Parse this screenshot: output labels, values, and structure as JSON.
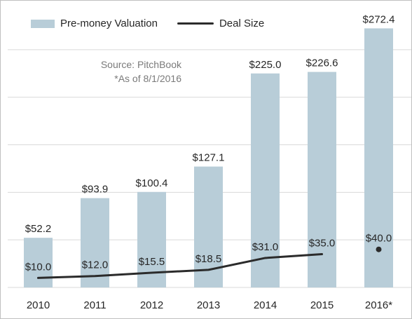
{
  "chart_data": {
    "type": "bar",
    "categories": [
      "2010",
      "2011",
      "2012",
      "2013",
      "2014",
      "2015",
      "2016*"
    ],
    "series": [
      {
        "name": "Pre-money Valuation",
        "type": "bar",
        "values": [
          52.2,
          93.9,
          100.4,
          127.1,
          225.0,
          226.6,
          272.4
        ],
        "labels": [
          "$52.2",
          "$93.9",
          "$100.4",
          "$127.1",
          "$225.0",
          "$226.6",
          "$272.4"
        ]
      },
      {
        "name": "Deal Size",
        "type": "line",
        "values": [
          10.0,
          12.0,
          15.5,
          18.5,
          31.0,
          35.0,
          40.0
        ],
        "labels": [
          "$10.0",
          "$12.0",
          "$15.5",
          "$18.5",
          "$31.0",
          "$35.0",
          "$40.0"
        ]
      }
    ],
    "ylim": [
      0,
      300
    ],
    "grid": true,
    "legend": "top-left",
    "annotations": [
      "Source: PitchBook",
      "*As of 8/1/2016"
    ],
    "colors": {
      "bar": "#b8cdd8",
      "line": "#2b2b2b",
      "grid": "#d9d9d9",
      "text": "#262626"
    }
  }
}
